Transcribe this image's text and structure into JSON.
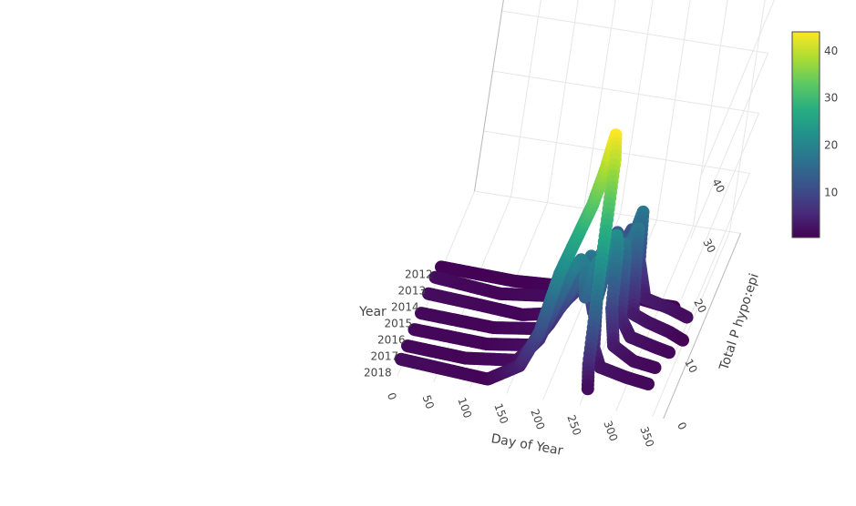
{
  "chart_data": {
    "type": "line3d",
    "x_axis": {
      "title": "Day of Year",
      "ticks": [
        "0",
        "50",
        "100",
        "150",
        "200",
        "250",
        "300",
        "350"
      ],
      "range": [
        0,
        365
      ]
    },
    "y_axis": {
      "title": "Year",
      "ticks": [
        "2012",
        "2013",
        "2014",
        "2015",
        "2016",
        "2017",
        "2018"
      ]
    },
    "z_axis": {
      "title": "Total P hypo:epi",
      "ticks": [
        "0",
        "10",
        "20",
        "30",
        "40"
      ],
      "range": [
        0,
        48
      ]
    },
    "colorbar": {
      "ticks": [
        "10",
        "20",
        "30",
        "40"
      ],
      "range": [
        0.5,
        44
      ],
      "colorscale": "viridis"
    },
    "series": [
      {
        "year": "2012",
        "points": [
          [
            0,
            2
          ],
          [
            60,
            1.5
          ],
          [
            120,
            1
          ],
          [
            160,
            4
          ],
          [
            180,
            10
          ],
          [
            195,
            20
          ],
          [
            210,
            26
          ],
          [
            225,
            32
          ],
          [
            235,
            38
          ],
          [
            242,
            44
          ],
          [
            246,
            40
          ],
          [
            249,
            20
          ],
          [
            252,
            6
          ],
          [
            256,
            2
          ]
        ]
      },
      {
        "year": "2013",
        "points": [
          [
            0,
            1.5
          ],
          [
            80,
            1
          ],
          [
            150,
            2
          ],
          [
            175,
            6
          ],
          [
            190,
            12
          ],
          [
            205,
            18
          ],
          [
            215,
            20
          ],
          [
            222,
            19
          ],
          [
            228,
            14
          ],
          [
            234,
            18
          ],
          [
            238,
            20
          ],
          [
            244,
            14
          ],
          [
            250,
            6
          ],
          [
            262,
            3
          ],
          [
            300,
            2
          ],
          [
            330,
            1.5
          ]
        ]
      },
      {
        "year": "2014",
        "points": [
          [
            0,
            1.5
          ],
          [
            100,
            1
          ],
          [
            160,
            2
          ],
          [
            180,
            6
          ],
          [
            195,
            10
          ],
          [
            210,
            14
          ],
          [
            222,
            18
          ],
          [
            228,
            12
          ],
          [
            236,
            9
          ],
          [
            246,
            18
          ],
          [
            252,
            22
          ],
          [
            256,
            20
          ],
          [
            260,
            10
          ],
          [
            270,
            4
          ],
          [
            300,
            2
          ],
          [
            330,
            1.5
          ]
        ]
      },
      {
        "year": "2015",
        "points": [
          [
            0,
            1.5
          ],
          [
            100,
            1
          ],
          [
            160,
            2
          ],
          [
            180,
            5
          ],
          [
            200,
            9
          ],
          [
            215,
            13
          ],
          [
            225,
            14
          ],
          [
            235,
            12
          ],
          [
            248,
            14
          ],
          [
            258,
            18
          ],
          [
            262,
            16
          ],
          [
            268,
            6
          ],
          [
            285,
            3
          ],
          [
            320,
            2
          ],
          [
            340,
            1.5
          ]
        ]
      },
      {
        "year": "2016",
        "points": [
          [
            0,
            2
          ],
          [
            70,
            1.5
          ],
          [
            130,
            1
          ],
          [
            170,
            2
          ],
          [
            195,
            6
          ],
          [
            215,
            10
          ],
          [
            228,
            14
          ],
          [
            238,
            15
          ],
          [
            250,
            14
          ],
          [
            262,
            16
          ],
          [
            268,
            18
          ],
          [
            272,
            12
          ],
          [
            278,
            4
          ],
          [
            300,
            3
          ],
          [
            330,
            2
          ],
          [
            350,
            1
          ]
        ]
      },
      {
        "year": "2017",
        "points": [
          [
            0,
            2
          ],
          [
            90,
            1
          ],
          [
            160,
            2
          ],
          [
            190,
            4
          ],
          [
            210,
            8
          ],
          [
            225,
            12
          ],
          [
            235,
            14
          ],
          [
            245,
            12
          ],
          [
            258,
            14
          ],
          [
            265,
            18
          ],
          [
            270,
            10
          ],
          [
            285,
            4
          ],
          [
            320,
            3
          ],
          [
            345,
            2
          ]
        ]
      },
      {
        "year": "2018",
        "points": [
          [
            0,
            1
          ],
          [
            100,
            0.6
          ],
          [
            160,
            1
          ],
          [
            180,
            2
          ],
          [
            192,
            1
          ],
          [
            205,
            4
          ],
          [
            220,
            6
          ],
          [
            235,
            8
          ],
          [
            248,
            12
          ],
          [
            255,
            8
          ],
          [
            262,
            3
          ],
          [
            270,
            1
          ],
          [
            300,
            0.5
          ],
          [
            320,
            0.5
          ]
        ]
      }
    ]
  }
}
